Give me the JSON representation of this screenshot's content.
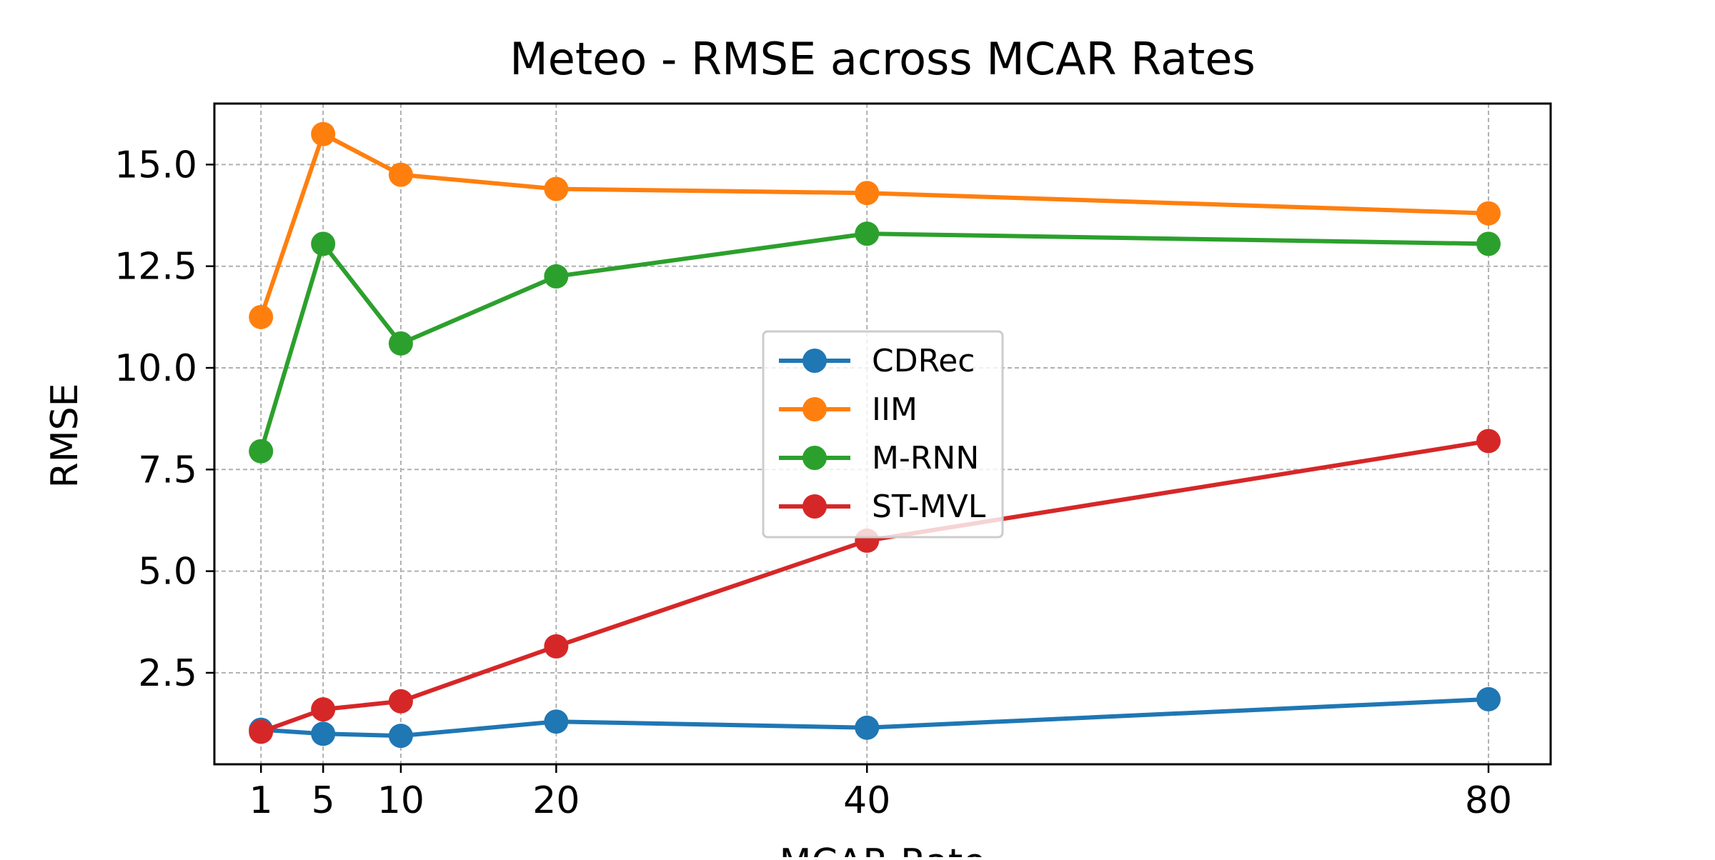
{
  "chart_data": {
    "type": "line",
    "title": "Meteo - RMSE across MCAR Rates",
    "xlabel": "MCAR Rate",
    "ylabel": "RMSE",
    "x": [
      1,
      5,
      10,
      20,
      40,
      80
    ],
    "xticks": [
      "1",
      "5",
      "10",
      "20",
      "40",
      "80"
    ],
    "xlim": [
      -2,
      84
    ],
    "yticks": [
      "2.5",
      "5.0",
      "7.5",
      "10.0",
      "12.5",
      "15.0"
    ],
    "ytick_values": [
      2.5,
      5.0,
      7.5,
      10.0,
      12.5,
      15.0
    ],
    "ylim": [
      0.25,
      16.5
    ],
    "grid": true,
    "legend_position": "center",
    "series": [
      {
        "name": "CDRec",
        "color": "#1f77b4",
        "values": [
          1.1,
          1.0,
          0.95,
          1.3,
          1.15,
          1.85
        ]
      },
      {
        "name": "IIM",
        "color": "#ff7f0e",
        "values": [
          11.25,
          15.75,
          14.75,
          14.4,
          14.3,
          13.8
        ]
      },
      {
        "name": "M-RNN",
        "color": "#2ca02c",
        "values": [
          7.95,
          13.05,
          10.6,
          12.25,
          13.3,
          13.05
        ]
      },
      {
        "name": "ST-MVL",
        "color": "#d62728",
        "values": [
          1.05,
          1.6,
          1.8,
          3.15,
          5.75,
          8.2
        ]
      }
    ]
  }
}
